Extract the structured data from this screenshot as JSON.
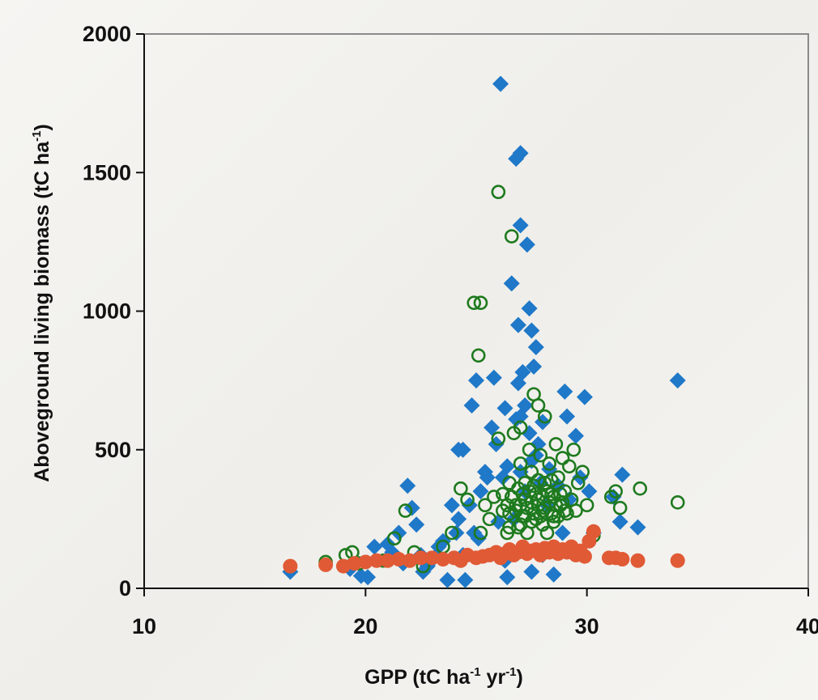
{
  "chart_data": {
    "type": "scatter",
    "title": "",
    "xlabel": {
      "parts": [
        {
          "text": "GPP (tC ha",
          "sup": false
        },
        {
          "text": "-1",
          "sup": true
        },
        {
          "text": " yr",
          "sup": false
        },
        {
          "text": "-1",
          "sup": true
        },
        {
          "text": ")",
          "sup": false
        }
      ]
    },
    "ylabel": {
      "parts": [
        {
          "text": "Aboveground living biomass  (tC ha",
          "sup": false
        },
        {
          "text": "-1",
          "sup": true
        },
        {
          "text": ")",
          "sup": false
        }
      ]
    },
    "xlim": [
      10,
      40
    ],
    "ylim": [
      0,
      2000
    ],
    "xticks": [
      10,
      20,
      30,
      40
    ],
    "yticks": [
      0,
      500,
      1000,
      1500,
      2000
    ],
    "grid": false,
    "legend": "none",
    "series": [
      {
        "marker": "diamond",
        "filled": true,
        "color": "#1f78c8",
        "points": [
          [
            16.6,
            60
          ],
          [
            19.3,
            70
          ],
          [
            19.8,
            45
          ],
          [
            20.1,
            40
          ],
          [
            20.4,
            150
          ],
          [
            21.0,
            160
          ],
          [
            21.2,
            130
          ],
          [
            21.5,
            200
          ],
          [
            21.7,
            90
          ],
          [
            21.9,
            370
          ],
          [
            22.1,
            290
          ],
          [
            22.3,
            230
          ],
          [
            22.5,
            120
          ],
          [
            22.6,
            60
          ],
          [
            22.8,
            80
          ],
          [
            23.1,
            110
          ],
          [
            23.3,
            150
          ],
          [
            23.5,
            170
          ],
          [
            23.7,
            30
          ],
          [
            23.9,
            300
          ],
          [
            24.1,
            200
          ],
          [
            24.2,
            250
          ],
          [
            24.2,
            500
          ],
          [
            24.4,
            500
          ],
          [
            24.4,
            120
          ],
          [
            24.5,
            30
          ],
          [
            24.7,
            300
          ],
          [
            24.8,
            660
          ],
          [
            24.9,
            200
          ],
          [
            25.0,
            750
          ],
          [
            25.1,
            180
          ],
          [
            25.2,
            350
          ],
          [
            25.4,
            420
          ],
          [
            25.5,
            400
          ],
          [
            25.7,
            580
          ],
          [
            25.8,
            760
          ],
          [
            25.9,
            520
          ],
          [
            26.0,
            240
          ],
          [
            26.1,
            1820
          ],
          [
            26.2,
            400
          ],
          [
            26.3,
            100
          ],
          [
            26.3,
            650
          ],
          [
            26.4,
            440
          ],
          [
            26.4,
            40
          ],
          [
            26.6,
            1100
          ],
          [
            26.7,
            250
          ],
          [
            26.8,
            1550
          ],
          [
            26.8,
            610
          ],
          [
            26.9,
            950
          ],
          [
            26.9,
            740
          ],
          [
            27.0,
            1570
          ],
          [
            27.0,
            1310
          ],
          [
            27.0,
            620
          ],
          [
            27.0,
            420
          ],
          [
            27.1,
            780
          ],
          [
            27.2,
            660
          ],
          [
            27.2,
            350
          ],
          [
            27.3,
            1240
          ],
          [
            27.4,
            1010
          ],
          [
            27.4,
            560
          ],
          [
            27.5,
            930
          ],
          [
            27.5,
            460
          ],
          [
            27.5,
            60
          ],
          [
            27.6,
            800
          ],
          [
            27.7,
            870
          ],
          [
            27.7,
            480
          ],
          [
            27.8,
            520
          ],
          [
            27.9,
            380
          ],
          [
            28.0,
            600
          ],
          [
            28.0,
            120
          ],
          [
            28.2,
            300
          ],
          [
            28.3,
            430
          ],
          [
            28.5,
            50
          ],
          [
            28.7,
            370
          ],
          [
            28.9,
            200
          ],
          [
            29.0,
            710
          ],
          [
            29.1,
            620
          ],
          [
            29.2,
            320
          ],
          [
            29.5,
            550
          ],
          [
            29.7,
            400
          ],
          [
            29.9,
            690
          ],
          [
            30.1,
            350
          ],
          [
            30.3,
            200
          ],
          [
            31.2,
            330
          ],
          [
            31.5,
            240
          ],
          [
            31.6,
            410
          ],
          [
            32.3,
            220
          ],
          [
            34.1,
            750
          ]
        ]
      },
      {
        "marker": "circle",
        "filled": false,
        "color": "#1e7a1e",
        "points": [
          [
            18.2,
            95
          ],
          [
            19.1,
            120
          ],
          [
            19.4,
            130
          ],
          [
            19.7,
            90
          ],
          [
            20.8,
            100
          ],
          [
            21.3,
            180
          ],
          [
            21.8,
            280
          ],
          [
            22.2,
            130
          ],
          [
            22.6,
            80
          ],
          [
            23.5,
            150
          ],
          [
            23.9,
            200
          ],
          [
            24.3,
            360
          ],
          [
            24.6,
            320
          ],
          [
            24.9,
            1030
          ],
          [
            25.1,
            840
          ],
          [
            25.2,
            1030
          ],
          [
            25.2,
            200
          ],
          [
            25.4,
            300
          ],
          [
            25.6,
            250
          ],
          [
            25.8,
            330
          ],
          [
            26.0,
            1430
          ],
          [
            26.0,
            540
          ],
          [
            26.2,
            280
          ],
          [
            26.4,
            200
          ],
          [
            26.5,
            380
          ],
          [
            26.6,
            1270
          ],
          [
            26.7,
            560
          ],
          [
            26.8,
            300
          ],
          [
            26.9,
            220
          ],
          [
            27.0,
            580
          ],
          [
            27.0,
            450
          ],
          [
            27.1,
            340
          ],
          [
            27.2,
            260
          ],
          [
            27.3,
            200
          ],
          [
            27.4,
            500
          ],
          [
            27.5,
            420
          ],
          [
            27.6,
            700
          ],
          [
            27.6,
            370
          ],
          [
            27.7,
            250
          ],
          [
            27.8,
            660
          ],
          [
            27.8,
            320
          ],
          [
            27.9,
            480
          ],
          [
            28.0,
            280
          ],
          [
            28.1,
            620
          ],
          [
            28.1,
            380
          ],
          [
            28.2,
            200
          ],
          [
            28.3,
            450
          ],
          [
            28.4,
            340
          ],
          [
            28.5,
            260
          ],
          [
            28.6,
            520
          ],
          [
            28.7,
            400
          ],
          [
            28.8,
            300
          ],
          [
            28.9,
            470
          ],
          [
            29.0,
            350
          ],
          [
            29.1,
            270
          ],
          [
            29.2,
            440
          ],
          [
            29.3,
            320
          ],
          [
            29.4,
            500
          ],
          [
            29.5,
            280
          ],
          [
            29.6,
            380
          ],
          [
            29.8,
            420
          ],
          [
            30.0,
            300
          ],
          [
            30.3,
            190
          ],
          [
            31.1,
            330
          ],
          [
            31.3,
            350
          ],
          [
            31.5,
            290
          ],
          [
            32.4,
            360
          ],
          [
            34.1,
            310
          ],
          [
            26.2,
            340
          ],
          [
            26.4,
            300
          ],
          [
            26.5,
            270
          ],
          [
            26.6,
            330
          ],
          [
            26.8,
            280
          ],
          [
            26.9,
            360
          ],
          [
            27.0,
            300
          ],
          [
            27.1,
            260
          ],
          [
            27.2,
            320
          ],
          [
            27.3,
            290
          ],
          [
            27.4,
            350
          ],
          [
            27.5,
            310
          ],
          [
            27.6,
            270
          ],
          [
            27.7,
            340
          ],
          [
            27.8,
            300
          ],
          [
            27.9,
            260
          ],
          [
            28.0,
            330
          ],
          [
            28.1,
            290
          ],
          [
            28.2,
            350
          ],
          [
            28.3,
            310
          ],
          [
            28.4,
            270
          ],
          [
            28.5,
            330
          ],
          [
            28.6,
            300
          ],
          [
            28.7,
            260
          ],
          [
            28.8,
            340
          ],
          [
            28.9,
            310
          ],
          [
            29.0,
            280
          ],
          [
            27.0,
            230
          ],
          [
            27.5,
            240
          ],
          [
            28.0,
            230
          ],
          [
            28.5,
            240
          ],
          [
            26.5,
            220
          ],
          [
            27.2,
            380
          ],
          [
            27.8,
            390
          ],
          [
            28.4,
            390
          ]
        ]
      },
      {
        "marker": "circle",
        "filled": true,
        "color": "#e05a35",
        "points": [
          [
            16.6,
            80
          ],
          [
            18.2,
            85
          ],
          [
            19.0,
            80
          ],
          [
            19.5,
            90
          ],
          [
            20.0,
            95
          ],
          [
            20.5,
            100
          ],
          [
            21.0,
            100
          ],
          [
            21.5,
            105
          ],
          [
            22.0,
            100
          ],
          [
            22.5,
            110
          ],
          [
            23.0,
            110
          ],
          [
            23.5,
            105
          ],
          [
            24.0,
            110
          ],
          [
            24.3,
            100
          ],
          [
            24.6,
            120
          ],
          [
            25.0,
            110
          ],
          [
            25.3,
            115
          ],
          [
            25.6,
            120
          ],
          [
            25.9,
            130
          ],
          [
            26.1,
            110
          ],
          [
            26.3,
            125
          ],
          [
            26.5,
            140
          ],
          [
            26.7,
            120
          ],
          [
            26.9,
            130
          ],
          [
            27.1,
            150
          ],
          [
            27.3,
            125
          ],
          [
            27.5,
            135
          ],
          [
            27.7,
            140
          ],
          [
            27.9,
            120
          ],
          [
            28.1,
            145
          ],
          [
            28.3,
            130
          ],
          [
            28.5,
            150
          ],
          [
            28.7,
            125
          ],
          [
            28.9,
            140
          ],
          [
            29.1,
            130
          ],
          [
            29.3,
            150
          ],
          [
            29.5,
            120
          ],
          [
            29.7,
            135
          ],
          [
            29.9,
            115
          ],
          [
            30.1,
            170
          ],
          [
            30.3,
            205
          ],
          [
            31.0,
            110
          ],
          [
            31.3,
            110
          ],
          [
            31.6,
            105
          ],
          [
            32.3,
            100
          ],
          [
            34.1,
            100
          ]
        ]
      }
    ]
  }
}
